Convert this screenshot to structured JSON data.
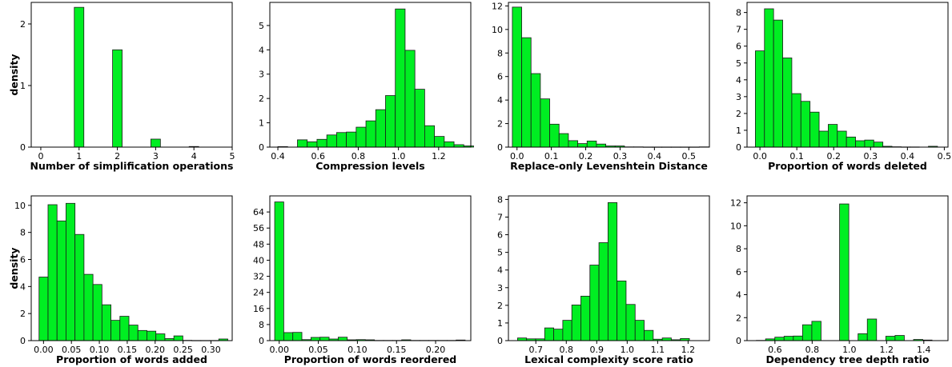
{
  "chart_data": [
    {
      "type": "bar",
      "xlabel": "Number of simplification operations",
      "ylabel": "density",
      "xlim": [
        -0.25,
        5
      ],
      "ylim": [
        0,
        2.35
      ],
      "xticks": [
        0,
        1,
        2,
        3,
        4,
        5
      ],
      "xtick_labels": [
        "0",
        "1",
        "2",
        "3",
        "4",
        "5"
      ],
      "yticks": [
        0,
        1,
        2
      ],
      "ytick_labels": [
        "0",
        "1",
        "2"
      ],
      "bin_width": 0.25,
      "bins": [
        {
          "x0": 0.875,
          "value": 2.27
        },
        {
          "x0": 1.875,
          "value": 1.58
        },
        {
          "x0": 2.875,
          "value": 0.13
        },
        {
          "x0": 3.875,
          "value": 0.01
        }
      ]
    },
    {
      "type": "bar",
      "xlabel": "Compression levels",
      "ylabel": "",
      "xlim": [
        0.36,
        1.36
      ],
      "ylim": [
        0,
        5.95
      ],
      "xticks": [
        0.4,
        0.6,
        0.8,
        1.0,
        1.2
      ],
      "xtick_labels": [
        "0.4",
        "0.6",
        "0.8",
        "1.0",
        "1.2"
      ],
      "yticks": [
        0,
        1,
        2,
        3,
        4,
        5
      ],
      "ytick_labels": [
        "0",
        "1",
        "2",
        "3",
        "4",
        "5"
      ],
      "bin_width": 0.0487,
      "bins": [
        {
          "x0": 0.4,
          "value": 0.02
        },
        {
          "x0": 0.4487,
          "value": 0.0
        },
        {
          "x0": 0.4974,
          "value": 0.3
        },
        {
          "x0": 0.5461,
          "value": 0.22
        },
        {
          "x0": 0.5948,
          "value": 0.32
        },
        {
          "x0": 0.6435,
          "value": 0.5
        },
        {
          "x0": 0.6922,
          "value": 0.6
        },
        {
          "x0": 0.7409,
          "value": 0.62
        },
        {
          "x0": 0.7896,
          "value": 0.82
        },
        {
          "x0": 0.8383,
          "value": 1.08
        },
        {
          "x0": 0.887,
          "value": 1.54
        },
        {
          "x0": 0.9357,
          "value": 2.12
        },
        {
          "x0": 0.9844,
          "value": 5.68
        },
        {
          "x0": 1.0331,
          "value": 3.98
        },
        {
          "x0": 1.0818,
          "value": 2.38
        },
        {
          "x0": 1.1305,
          "value": 0.88
        },
        {
          "x0": 1.1792,
          "value": 0.44
        },
        {
          "x0": 1.2279,
          "value": 0.22
        },
        {
          "x0": 1.2766,
          "value": 0.1
        },
        {
          "x0": 1.3253,
          "value": 0.05
        }
      ]
    },
    {
      "type": "bar",
      "xlabel": "Replace-only Levenshtein Distance",
      "ylabel": "",
      "xlim": [
        -0.025,
        0.56
      ],
      "ylim": [
        0,
        12.3
      ],
      "xticks": [
        0.0,
        0.1,
        0.2,
        0.3,
        0.4,
        0.5
      ],
      "xtick_labels": [
        "0.0",
        "0.1",
        "0.2",
        "0.3",
        "0.4",
        "0.5"
      ],
      "yticks": [
        0,
        2,
        4,
        6,
        8,
        10,
        12
      ],
      "ytick_labels": [
        "0",
        "2",
        "4",
        "6",
        "8",
        "10",
        "12"
      ],
      "bin_width": 0.0272,
      "bins": [
        {
          "x0": -0.0136,
          "value": 11.9
        },
        {
          "x0": 0.0136,
          "value": 9.3
        },
        {
          "x0": 0.0408,
          "value": 6.25
        },
        {
          "x0": 0.068,
          "value": 4.1
        },
        {
          "x0": 0.0952,
          "value": 1.95
        },
        {
          "x0": 0.1224,
          "value": 1.15
        },
        {
          "x0": 0.1496,
          "value": 0.55
        },
        {
          "x0": 0.1768,
          "value": 0.3
        },
        {
          "x0": 0.204,
          "value": 0.52
        },
        {
          "x0": 0.2312,
          "value": 0.26
        },
        {
          "x0": 0.2584,
          "value": 0.1
        },
        {
          "x0": 0.2856,
          "value": 0.1
        },
        {
          "x0": 0.3128,
          "value": 0.02
        },
        {
          "x0": 0.34,
          "value": 0.02
        },
        {
          "x0": 0.3672,
          "value": 0.01
        },
        {
          "x0": 0.3944,
          "value": 0.01
        },
        {
          "x0": 0.4216,
          "value": 0.01
        },
        {
          "x0": 0.4488,
          "value": 0.01
        },
        {
          "x0": 0.476,
          "value": 0.01
        },
        {
          "x0": 0.5032,
          "value": 0.01
        },
        {
          "x0": 0.5304,
          "value": 0.02
        }
      ]
    },
    {
      "type": "bar",
      "xlabel": "Proportion of words deleted",
      "ylabel": "",
      "xlim": [
        -0.035,
        0.51
      ],
      "ylim": [
        0,
        8.6
      ],
      "xticks": [
        0.0,
        0.1,
        0.2,
        0.3,
        0.4,
        0.5
      ],
      "xtick_labels": [
        "0.0",
        "0.1",
        "0.2",
        "0.3",
        "0.4",
        "0.5"
      ],
      "yticks": [
        0,
        1,
        2,
        3,
        4,
        5,
        6,
        7,
        8
      ],
      "ytick_labels": [
        "0",
        "1",
        "2",
        "3",
        "4",
        "5",
        "6",
        "7",
        "8"
      ],
      "bin_width": 0.0247,
      "bins": [
        {
          "x0": -0.0124,
          "value": 5.72
        },
        {
          "x0": 0.0123,
          "value": 8.22
        },
        {
          "x0": 0.037,
          "value": 7.55
        },
        {
          "x0": 0.0617,
          "value": 5.3
        },
        {
          "x0": 0.0864,
          "value": 3.18
        },
        {
          "x0": 0.1111,
          "value": 2.72
        },
        {
          "x0": 0.1358,
          "value": 2.08
        },
        {
          "x0": 0.1605,
          "value": 0.95
        },
        {
          "x0": 0.1852,
          "value": 1.35
        },
        {
          "x0": 0.2099,
          "value": 0.95
        },
        {
          "x0": 0.2346,
          "value": 0.6
        },
        {
          "x0": 0.2593,
          "value": 0.38
        },
        {
          "x0": 0.284,
          "value": 0.42
        },
        {
          "x0": 0.3087,
          "value": 0.3
        },
        {
          "x0": 0.3334,
          "value": 0.05
        },
        {
          "x0": 0.3581,
          "value": 0.02
        },
        {
          "x0": 0.3828,
          "value": 0.01
        },
        {
          "x0": 0.4075,
          "value": 0.01
        },
        {
          "x0": 0.4322,
          "value": 0.0
        },
        {
          "x0": 0.4569,
          "value": 0.05
        }
      ]
    },
    {
      "type": "bar",
      "xlabel": "Proportion of words added",
      "ylabel": "density",
      "xlim": [
        -0.022,
        0.338
      ],
      "ylim": [
        0,
        10.7
      ],
      "xticks": [
        0.0,
        0.05,
        0.1,
        0.15,
        0.2,
        0.25,
        0.3
      ],
      "xtick_labels": [
        "0.00",
        "0.05",
        "0.10",
        "0.15",
        "0.20",
        "0.25",
        "0.30"
      ],
      "yticks": [
        0,
        2,
        4,
        6,
        8,
        10
      ],
      "ytick_labels": [
        "0",
        "2",
        "4",
        "6",
        "8",
        "10"
      ],
      "bin_width": 0.0161,
      "bins": [
        {
          "x0": -0.008,
          "value": 4.7
        },
        {
          "x0": 0.0081,
          "value": 10.05
        },
        {
          "x0": 0.0242,
          "value": 8.85
        },
        {
          "x0": 0.0403,
          "value": 10.15
        },
        {
          "x0": 0.0564,
          "value": 7.85
        },
        {
          "x0": 0.0725,
          "value": 4.9
        },
        {
          "x0": 0.0886,
          "value": 4.15
        },
        {
          "x0": 0.1047,
          "value": 2.65
        },
        {
          "x0": 0.1208,
          "value": 1.5
        },
        {
          "x0": 0.1369,
          "value": 1.8
        },
        {
          "x0": 0.153,
          "value": 1.15
        },
        {
          "x0": 0.1691,
          "value": 0.75
        },
        {
          "x0": 0.1852,
          "value": 0.7
        },
        {
          "x0": 0.2013,
          "value": 0.5
        },
        {
          "x0": 0.2174,
          "value": 0.15
        },
        {
          "x0": 0.2335,
          "value": 0.35
        },
        {
          "x0": 0.2496,
          "value": 0.02
        },
        {
          "x0": 0.2657,
          "value": 0.01
        },
        {
          "x0": 0.2818,
          "value": 0.01
        },
        {
          "x0": 0.2979,
          "value": 0.01
        },
        {
          "x0": 0.314,
          "value": 0.12
        }
      ]
    },
    {
      "type": "bar",
      "xlabel": "Proportion of words reordered",
      "ylabel": "",
      "xlim": [
        -0.012,
        0.245
      ],
      "ylim": [
        0,
        72
      ],
      "xticks": [
        0.0,
        0.05,
        0.1,
        0.15,
        0.2
      ],
      "xtick_labels": [
        "0.00",
        "0.05",
        "0.10",
        "0.15",
        "0.20"
      ],
      "yticks": [
        0,
        8,
        16,
        24,
        32,
        40,
        48,
        56,
        64
      ],
      "ytick_labels": [
        "0",
        "8",
        "16",
        "24",
        "32",
        "40",
        "48",
        "56",
        "64"
      ],
      "bin_width": 0.0116,
      "bins": [
        {
          "x0": -0.0058,
          "value": 69.0
        },
        {
          "x0": 0.0058,
          "value": 4.0
        },
        {
          "x0": 0.0174,
          "value": 4.1
        },
        {
          "x0": 0.029,
          "value": 0.5
        },
        {
          "x0": 0.0406,
          "value": 1.6
        },
        {
          "x0": 0.0522,
          "value": 1.7
        },
        {
          "x0": 0.0638,
          "value": 0.8
        },
        {
          "x0": 0.0754,
          "value": 1.7
        },
        {
          "x0": 0.087,
          "value": 0.4
        },
        {
          "x0": 0.0986,
          "value": 0.5
        },
        {
          "x0": 0.1102,
          "value": 0.4
        },
        {
          "x0": 0.1218,
          "value": 0.1
        },
        {
          "x0": 0.1334,
          "value": 0.1
        },
        {
          "x0": 0.145,
          "value": 0.1
        },
        {
          "x0": 0.1566,
          "value": 0.4
        },
        {
          "x0": 0.1682,
          "value": 0.1
        },
        {
          "x0": 0.1798,
          "value": 0.1
        },
        {
          "x0": 0.1914,
          "value": 0.1
        },
        {
          "x0": 0.203,
          "value": 0.1
        },
        {
          "x0": 0.2146,
          "value": 0.1
        },
        {
          "x0": 0.2262,
          "value": 0.3
        }
      ]
    },
    {
      "type": "bar",
      "xlabel": "Lexical complexity score ratio",
      "ylabel": "",
      "xlim": [
        0.61,
        1.27
      ],
      "ylim": [
        0,
        8.2
      ],
      "xticks": [
        0.7,
        0.8,
        0.9,
        1.0,
        1.1,
        1.2
      ],
      "xtick_labels": [
        "0.7",
        "0.8",
        "0.9",
        "1.0",
        "1.1",
        "1.2"
      ],
      "yticks": [
        0,
        1,
        2,
        3,
        4,
        5,
        6,
        7,
        8
      ],
      "ytick_labels": [
        "0",
        "1",
        "2",
        "3",
        "4",
        "5",
        "6",
        "7",
        "8"
      ],
      "bin_width": 0.0297,
      "bins": [
        {
          "x0": 0.64,
          "value": 0.15
        },
        {
          "x0": 0.6697,
          "value": 0.1
        },
        {
          "x0": 0.6994,
          "value": 0.1
        },
        {
          "x0": 0.7291,
          "value": 0.72
        },
        {
          "x0": 0.7588,
          "value": 0.65
        },
        {
          "x0": 0.7885,
          "value": 1.15
        },
        {
          "x0": 0.8182,
          "value": 2.02
        },
        {
          "x0": 0.8479,
          "value": 2.52
        },
        {
          "x0": 0.8776,
          "value": 4.28
        },
        {
          "x0": 0.9073,
          "value": 5.55
        },
        {
          "x0": 0.937,
          "value": 7.82
        },
        {
          "x0": 0.9667,
          "value": 3.38
        },
        {
          "x0": 0.9964,
          "value": 2.05
        },
        {
          "x0": 1.0261,
          "value": 1.15
        },
        {
          "x0": 1.0558,
          "value": 0.58
        },
        {
          "x0": 1.0855,
          "value": 0.08
        },
        {
          "x0": 1.1152,
          "value": 0.15
        },
        {
          "x0": 1.1449,
          "value": 0.05
        },
        {
          "x0": 1.1746,
          "value": 0.12
        }
      ]
    },
    {
      "type": "bar",
      "xlabel": "Dependency tree depth ratio",
      "ylabel": "",
      "xlim": [
        0.45,
        1.53
      ],
      "ylim": [
        0,
        12.6
      ],
      "xticks": [
        0.6,
        0.8,
        1.0,
        1.2,
        1.4
      ],
      "xtick_labels": [
        "0.6",
        "0.8",
        "1.0",
        "1.2",
        "1.4"
      ],
      "yticks": [
        0,
        2,
        4,
        6,
        8,
        10,
        12
      ],
      "ytick_labels": [
        "0",
        "2",
        "4",
        "6",
        "8",
        "10",
        "12"
      ],
      "bin_width": 0.0497,
      "bins": [
        {
          "x0": 0.5,
          "value": 0.02
        },
        {
          "x0": 0.5497,
          "value": 0.15
        },
        {
          "x0": 0.5994,
          "value": 0.3
        },
        {
          "x0": 0.6491,
          "value": 0.38
        },
        {
          "x0": 0.6988,
          "value": 0.4
        },
        {
          "x0": 0.7485,
          "value": 1.38
        },
        {
          "x0": 0.7982,
          "value": 1.68
        },
        {
          "x0": 0.8479,
          "value": 0.0
        },
        {
          "x0": 0.8976,
          "value": 0.0
        },
        {
          "x0": 0.9473,
          "value": 11.9
        },
        {
          "x0": 0.997,
          "value": 0.0
        },
        {
          "x0": 1.0467,
          "value": 0.6
        },
        {
          "x0": 1.0964,
          "value": 1.88
        },
        {
          "x0": 1.1461,
          "value": 0.0
        },
        {
          "x0": 1.1958,
          "value": 0.38
        },
        {
          "x0": 1.2455,
          "value": 0.45
        },
        {
          "x0": 1.2952,
          "value": 0.0
        },
        {
          "x0": 1.3449,
          "value": 0.1
        },
        {
          "x0": 1.3946,
          "value": 0.05
        }
      ]
    }
  ],
  "style": {
    "bar_color": "#00ee22",
    "bar_edge_color": "#1a1a1a"
  }
}
